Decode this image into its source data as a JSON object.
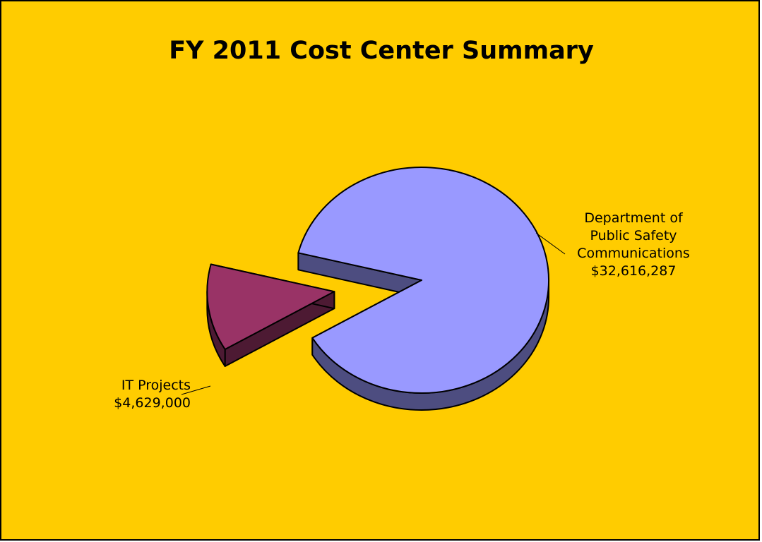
{
  "chart_data": {
    "type": "pie",
    "style": "3d-exploded",
    "title": "FY 2011 Cost Center Summary",
    "background": "#ffcc00",
    "slices": [
      {
        "label_lines": [
          "Department of",
          "Public Safety",
          "Communications"
        ],
        "value": 32616287,
        "value_label": "$32,616,287",
        "color": "#9999ff",
        "side_color": "#4d4d80"
      },
      {
        "label_lines": [
          "IT Projects"
        ],
        "value": 4629000,
        "value_label": "$4,629,000",
        "color": "#993366",
        "side_color": "#4d1a33"
      }
    ]
  }
}
